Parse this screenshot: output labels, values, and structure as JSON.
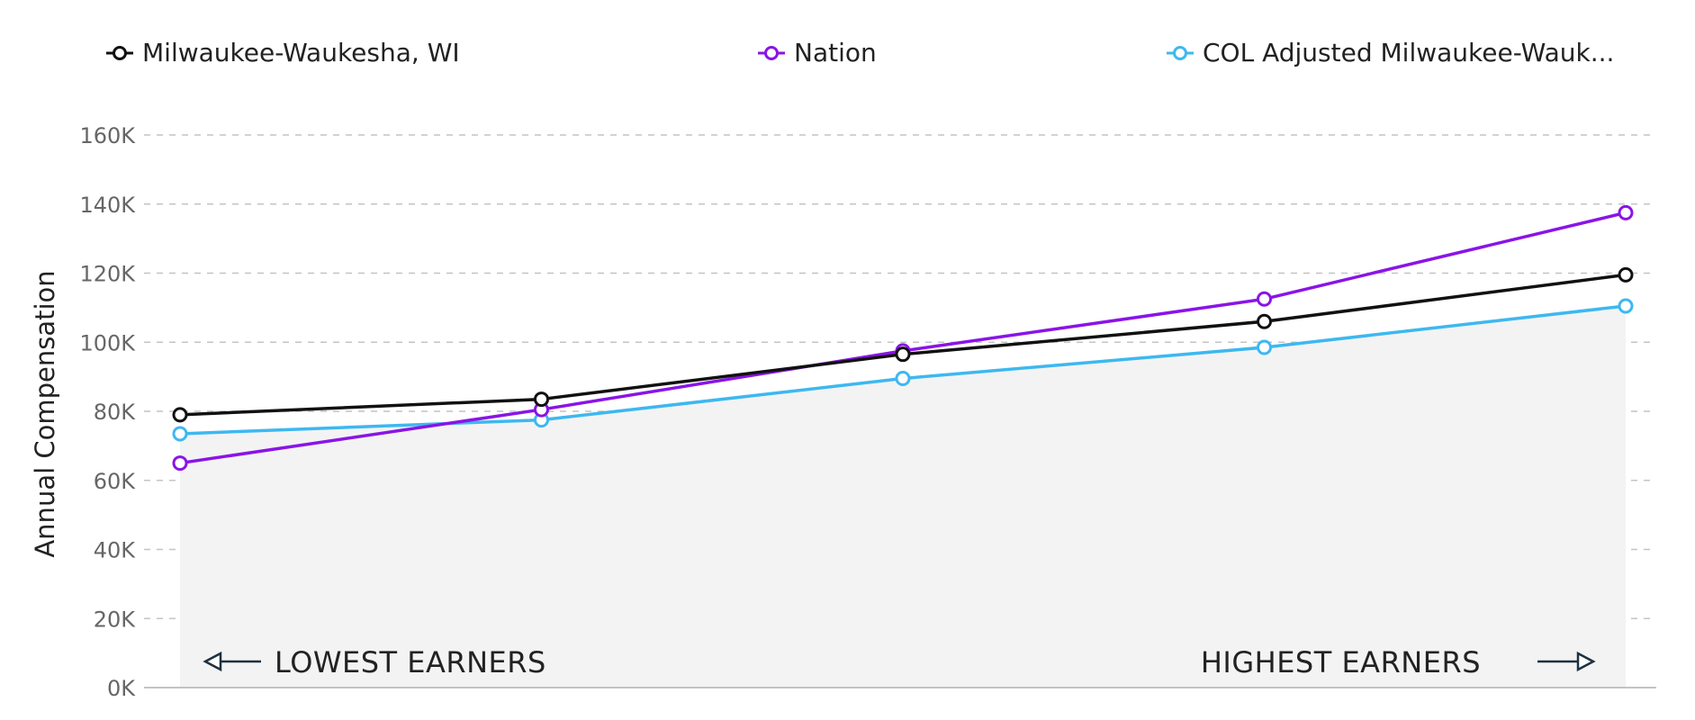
{
  "legend": [
    {
      "label": "Milwaukee-Waukesha, WI",
      "color": "#111111"
    },
    {
      "label": "Nation",
      "color": "#8a14e6"
    },
    {
      "label": "COL Adjusted Milwaukee-Wauk...",
      "color": "#3db8f0"
    }
  ],
  "chart_data": {
    "type": "line",
    "x": [
      1,
      2,
      3,
      4,
      5
    ],
    "series": [
      {
        "name": "Milwaukee-Waukesha, WI",
        "color": "#111111",
        "values": [
          79000,
          83500,
          96500,
          106000,
          119500
        ]
      },
      {
        "name": "Nation",
        "color": "#8a14e6",
        "values": [
          65000,
          80500,
          97500,
          112500,
          137500
        ]
      },
      {
        "name": "COL Adjusted Milwaukee-Wauk...",
        "color": "#3db8f0",
        "values": [
          73500,
          77500,
          89500,
          98500,
          110500
        ]
      }
    ],
    "ylabel": "Annual Compensation",
    "ylim": [
      0,
      160000
    ],
    "yticks": [
      {
        "value": 0,
        "label": "0K"
      },
      {
        "value": 20000,
        "label": "20K"
      },
      {
        "value": 40000,
        "label": "40K"
      },
      {
        "value": 60000,
        "label": "60K"
      },
      {
        "value": 80000,
        "label": "80K"
      },
      {
        "value": 100000,
        "label": "100K"
      },
      {
        "value": 120000,
        "label": "120K"
      },
      {
        "value": 140000,
        "label": "140K"
      },
      {
        "value": 160000,
        "label": "160K"
      }
    ],
    "annotations": {
      "left": "LOWEST EARNERS",
      "right": "HIGHEST EARNERS"
    },
    "grid": true,
    "legend_position": "top",
    "area_fill_series": "COL Adjusted Milwaukee-Wauk..."
  }
}
